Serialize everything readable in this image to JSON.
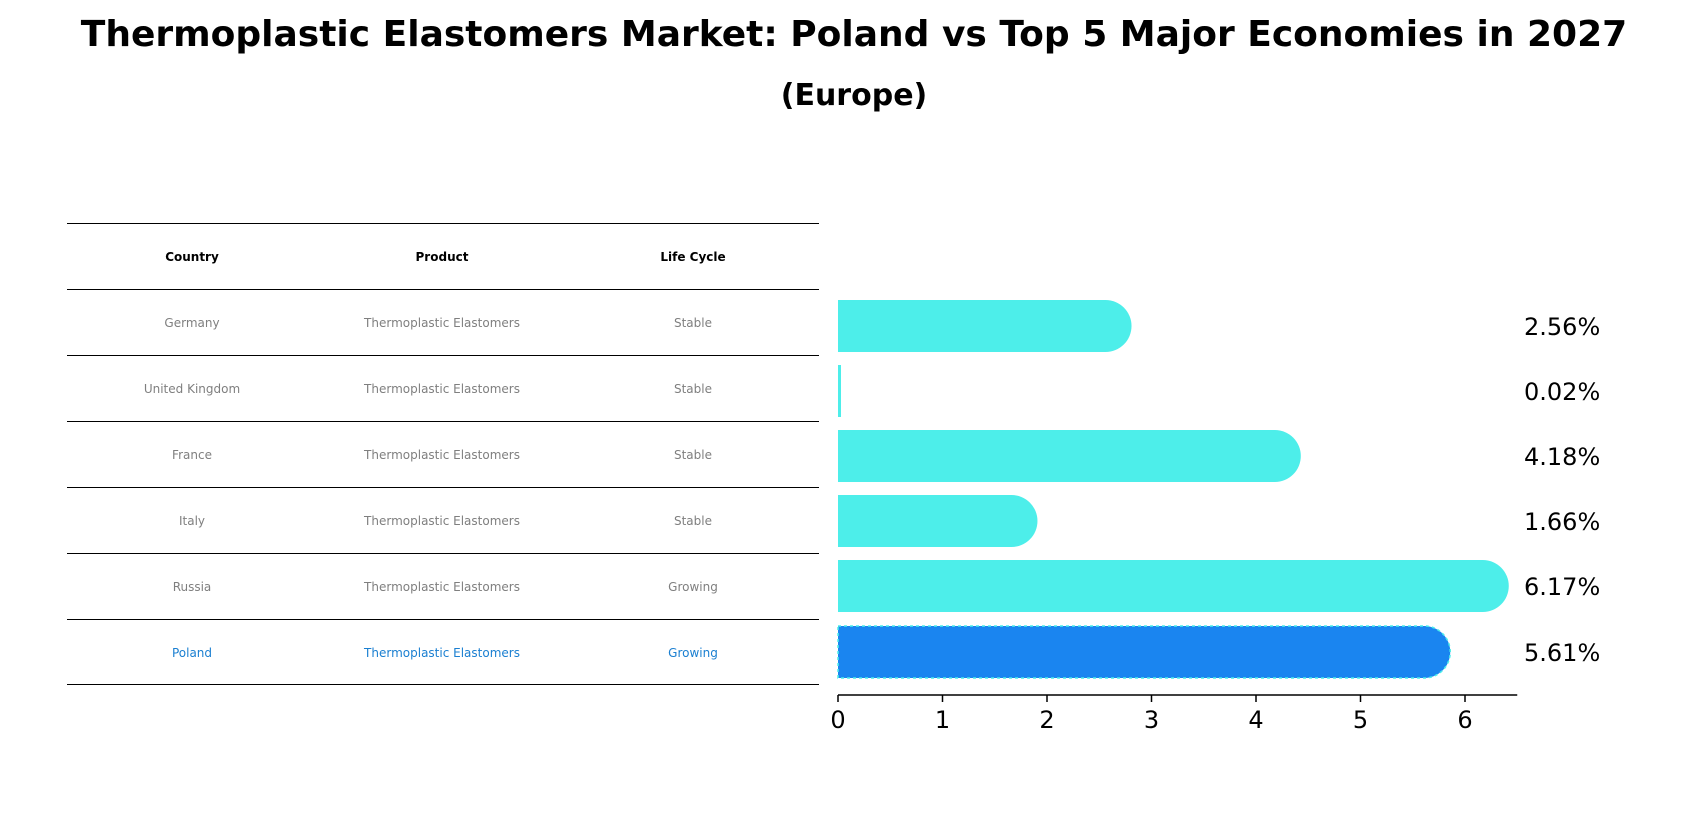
{
  "title": "Thermoplastic Elastomers Market: Poland vs Top 5 Major Economies in 2027",
  "subtitle": "(Europe)",
  "table": {
    "headers": [
      "Country",
      "Product",
      "Life Cycle"
    ],
    "rows": [
      {
        "country": "Germany",
        "product": "Thermoplastic Elastomers",
        "life_cycle": "Stable"
      },
      {
        "country": "United Kingdom",
        "product": "Thermoplastic Elastomers",
        "life_cycle": "Stable"
      },
      {
        "country": "France",
        "product": "Thermoplastic Elastomers",
        "life_cycle": "Stable"
      },
      {
        "country": "Italy",
        "product": "Thermoplastic Elastomers",
        "life_cycle": "Stable"
      },
      {
        "country": "Russia",
        "product": "Thermoplastic Elastomers",
        "life_cycle": "Growing"
      },
      {
        "country": "Poland",
        "product": "Thermoplastic Elastomers",
        "life_cycle": "Growing"
      }
    ]
  },
  "chart_data": {
    "type": "bar",
    "orientation": "horizontal",
    "categories": [
      "Germany",
      "United Kingdom",
      "France",
      "Italy",
      "Russia",
      "Poland"
    ],
    "values": [
      2.56,
      0.02,
      4.18,
      1.66,
      6.17,
      5.61
    ],
    "value_labels": [
      "2.56%",
      "0.02%",
      "4.18%",
      "1.66%",
      "6.17%",
      "5.61%"
    ],
    "highlight": "Poland",
    "xlim": [
      0,
      6.5
    ],
    "xticks": [
      0,
      1,
      2,
      3,
      4,
      5,
      6
    ],
    "grid": false,
    "colors": {
      "default": "#4deeea",
      "highlight": "#1a85f0"
    }
  }
}
